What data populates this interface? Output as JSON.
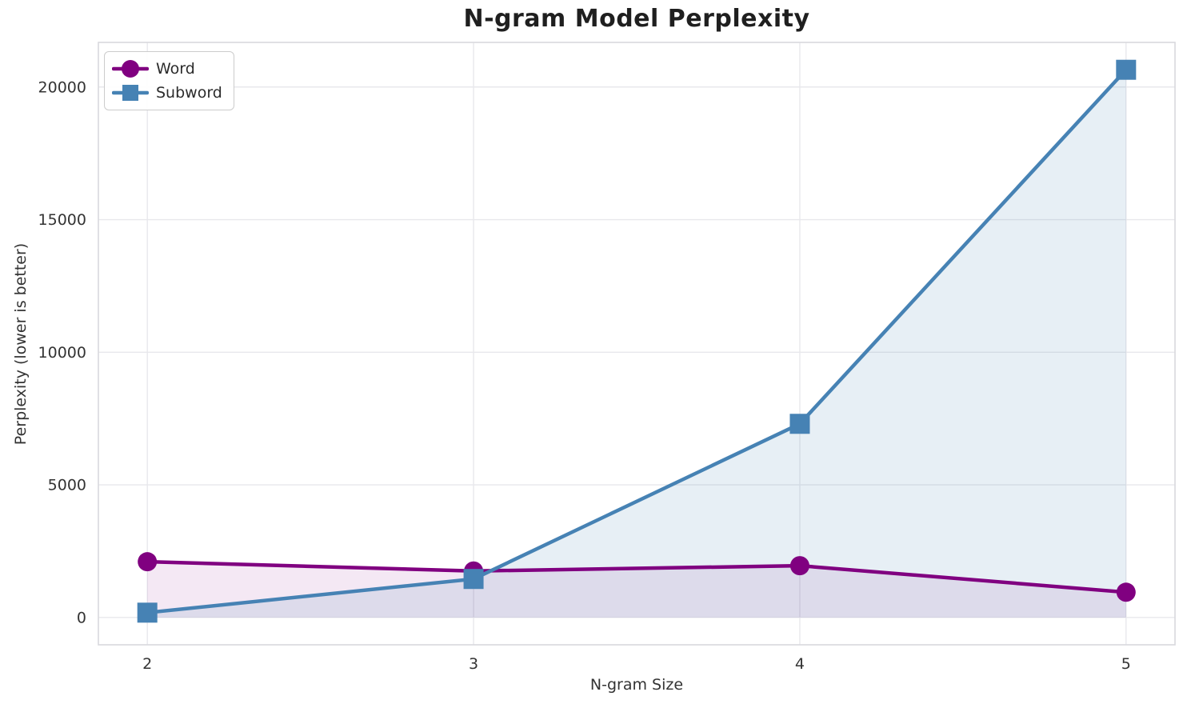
{
  "chart_data": {
    "type": "line",
    "title": "N-gram Model Perplexity",
    "xlabel": "N-gram Size",
    "ylabel": "Perplexity (lower is better)",
    "x": [
      2,
      3,
      4,
      5
    ],
    "series": [
      {
        "name": "Word",
        "color": "#800080",
        "marker": "circle",
        "line_width": 4.5,
        "marker_size": 24,
        "fill_opacity": 0.09,
        "values": [
          2100,
          1750,
          1950,
          950
        ]
      },
      {
        "name": "Subword",
        "color": "#4682B4",
        "marker": "square",
        "line_width": 4.5,
        "marker_size": 25,
        "fill_opacity": 0.13,
        "values": [
          180,
          1450,
          7300,
          20650
        ]
      }
    ],
    "fill_baseline": 0,
    "xticks": {
      "values": [
        2,
        3,
        4,
        5
      ],
      "labels": [
        "2",
        "3",
        "4",
        "5"
      ]
    },
    "yticks": {
      "values": [
        0,
        5000,
        10000,
        15000,
        20000
      ],
      "labels": [
        "0",
        "5000",
        "10000",
        "15000",
        "20000"
      ]
    },
    "xlim": [
      1.85,
      5.15
    ],
    "ylim": [
      -1032,
      21682
    ],
    "grid": true,
    "grid_color": "#e8e8ec",
    "spine_color": "#d9d9de",
    "tick_color": "#333333",
    "legend_position": "upper left",
    "background": "#ffffff"
  }
}
